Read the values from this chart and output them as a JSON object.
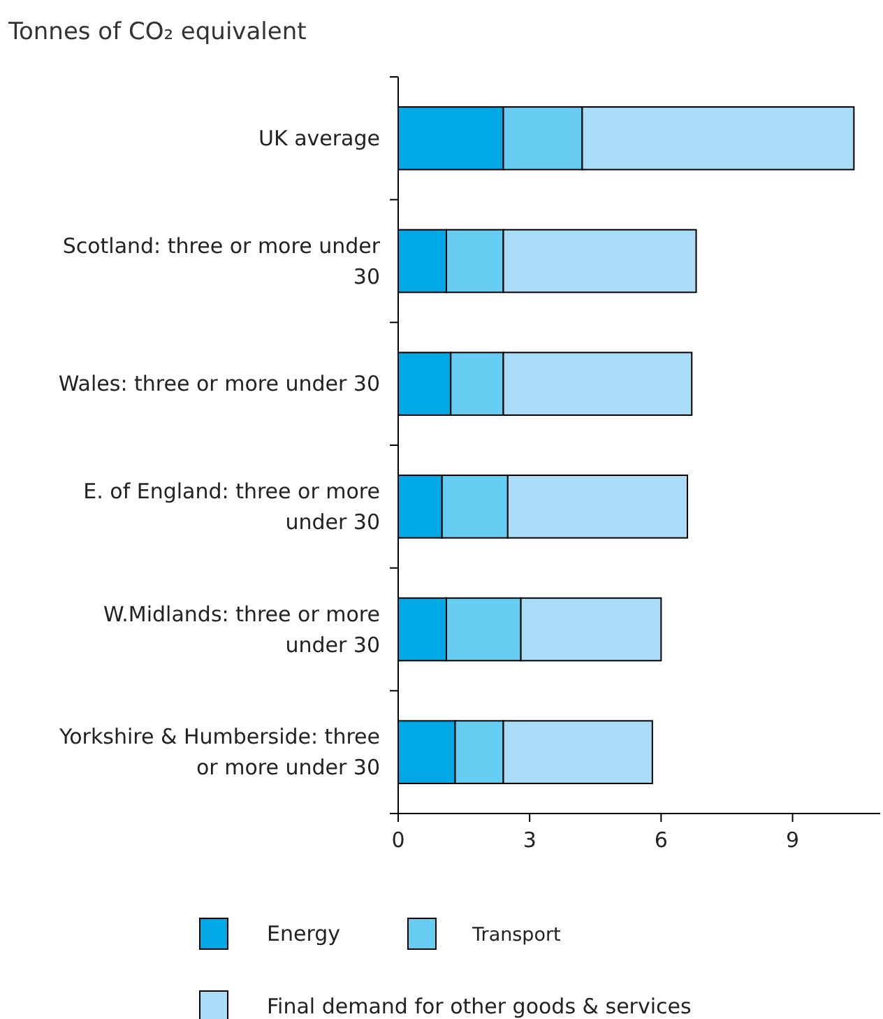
{
  "chart_data": {
    "type": "bar",
    "orientation": "horizontal",
    "stacked": true,
    "title": "Tonnes of CO₂ equivalent",
    "categories": [
      "UK average",
      "Scotland: three or more under 30",
      "Wales: three or more under 30",
      "E. of England: three or more under 30",
      "W.Midlands: three or more under 30",
      "Yorkshire & Humberside: three or more under 30"
    ],
    "series": [
      {
        "name": "Energy",
        "color": "#00a9e6",
        "values": [
          2.4,
          1.1,
          1.2,
          1.0,
          1.1,
          1.3
        ]
      },
      {
        "name": "Transport",
        "color": "#66ccf2",
        "values": [
          1.8,
          1.3,
          1.2,
          1.5,
          1.7,
          1.1
        ]
      },
      {
        "name": "Final demand for other goods & services",
        "color": "#a8dcf7",
        "values": [
          6.2,
          4.4,
          4.3,
          4.1,
          3.2,
          3.4
        ]
      }
    ],
    "xlim": [
      0,
      11
    ],
    "xticks": [
      0,
      3,
      6,
      9
    ],
    "legend": "bottom",
    "grid": false
  }
}
